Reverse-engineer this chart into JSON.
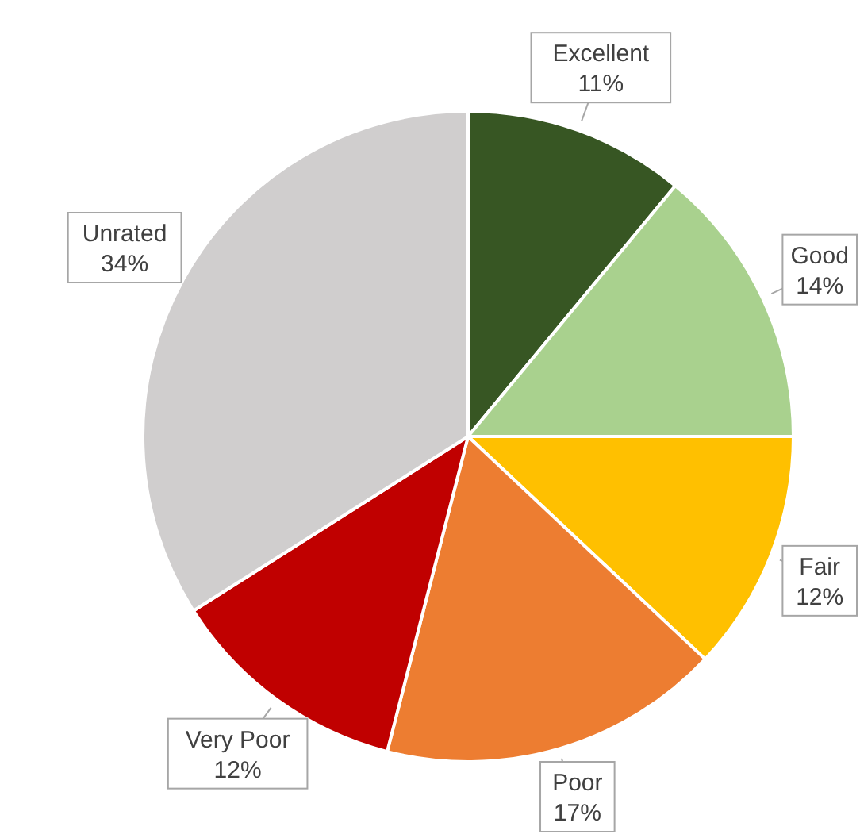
{
  "chart_data": {
    "type": "pie",
    "categories": [
      "Excellent",
      "Good",
      "Fair",
      "Poor",
      "Very Poor",
      "Unrated"
    ],
    "values": [
      11,
      14,
      12,
      17,
      12,
      34
    ],
    "value_labels": [
      "11%",
      "14%",
      "12%",
      "17%",
      "12%",
      "34%"
    ],
    "colors": [
      "#375623",
      "#a9d18e",
      "#ffc000",
      "#ed7d31",
      "#c00000",
      "#d0cece"
    ]
  }
}
